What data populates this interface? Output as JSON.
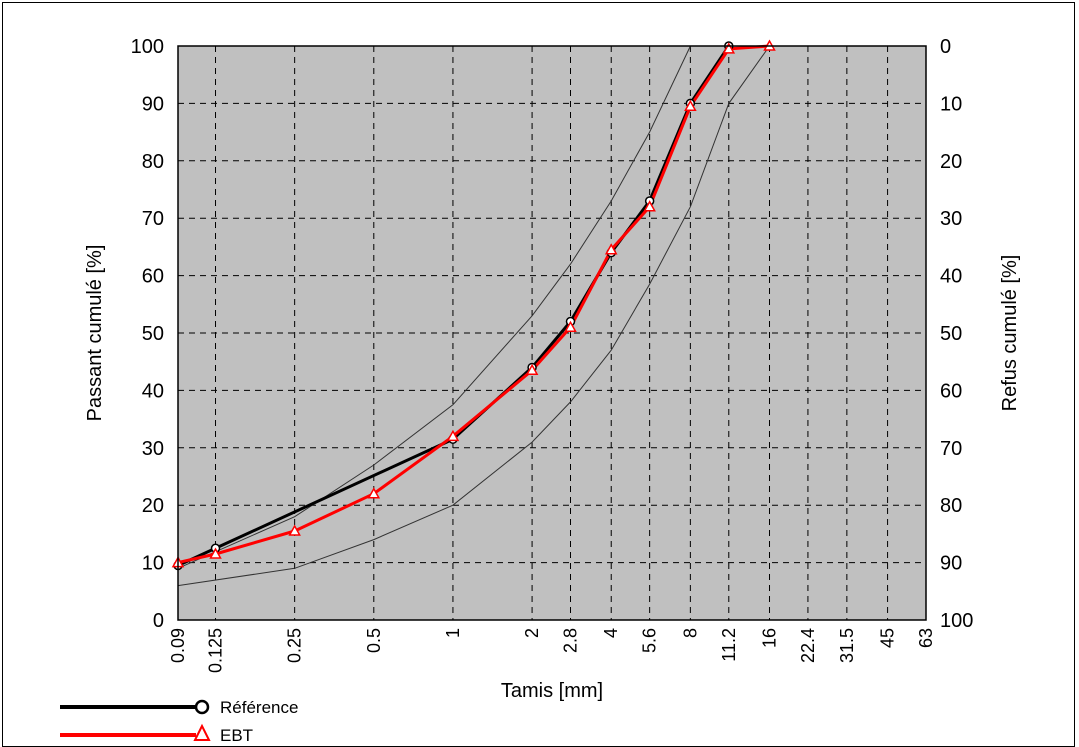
{
  "chart_data": {
    "type": "line",
    "xscale": "log",
    "xlabel": "Tamis [mm]",
    "ylabel": "Passant cumulé [%]",
    "y2label": "Refus cumulé [%]",
    "x_ticks": [
      0.09,
      0.125,
      0.25,
      0.5,
      1,
      2,
      2.8,
      4,
      5.6,
      8,
      11.2,
      16,
      22.4,
      31.5,
      45,
      63
    ],
    "x_tick_labels": [
      "0.09",
      "0.125",
      "0.25",
      "0.5",
      "1",
      "2",
      "2.8",
      "4",
      "5.6",
      "8",
      "11.2",
      "16",
      "22.4",
      "31.5",
      "45",
      "63"
    ],
    "xlim": [
      0.09,
      63
    ],
    "ylim": [
      0,
      100
    ],
    "y_ticks": [
      0,
      10,
      20,
      30,
      40,
      50,
      60,
      70,
      80,
      90,
      100
    ],
    "y_tick_labels": [
      "0",
      "10",
      "20",
      "30",
      "40",
      "50",
      "60",
      "70",
      "80",
      "90",
      "100"
    ],
    "y2_tick_labels": [
      "100",
      "90",
      "80",
      "70",
      "60",
      "50",
      "40",
      "30",
      "20",
      "10",
      "0"
    ],
    "grid": true,
    "background": "#c0c0c0",
    "legend_position": "bottom-left",
    "series": [
      {
        "name": "Référence",
        "color": "#000000",
        "marker": "circle",
        "x": [
          0.09,
          0.125,
          1,
          2,
          2.8,
          4,
          5.6,
          8,
          11.2
        ],
        "y": [
          9.5,
          12.5,
          31.5,
          44,
          52,
          64,
          73,
          90,
          100
        ]
      },
      {
        "name": "EBT",
        "color": "#ff0000",
        "marker": "triangle",
        "x": [
          0.09,
          0.125,
          0.25,
          0.5,
          1,
          2,
          2.8,
          4,
          5.6,
          8,
          11.2,
          16
        ],
        "y": [
          10,
          11.5,
          15.5,
          22,
          32,
          43.5,
          51,
          64.5,
          72,
          89.5,
          99.5,
          100
        ]
      }
    ],
    "envelopes": [
      {
        "color": "#333333",
        "x": [
          0.09,
          0.25,
          0.5,
          1,
          2,
          2.8,
          4,
          5.6,
          8
        ],
        "y": [
          9,
          18,
          27,
          37.5,
          53,
          62,
          73,
          85,
          100
        ]
      },
      {
        "color": "#333333",
        "x": [
          0.09,
          0.25,
          0.5,
          1,
          2,
          2.8,
          4,
          5.6,
          8,
          11.2,
          16
        ],
        "y": [
          6,
          9,
          14,
          20,
          31,
          38,
          47,
          58.5,
          72,
          90,
          100
        ]
      }
    ]
  }
}
